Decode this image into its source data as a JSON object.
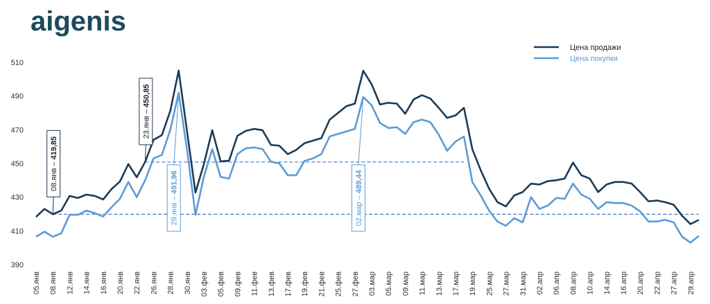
{
  "logo": "aigenis",
  "chart_data": {
    "type": "line",
    "categories": [
      "05.янв",
      null,
      "08.янв",
      null,
      "12.янв",
      null,
      "14.янв",
      null,
      "16.янв",
      null,
      "20.янв",
      null,
      "22.янв",
      null,
      "26.янв",
      null,
      "28.янв",
      null,
      "30.янв",
      null,
      "03.фев",
      null,
      "05.фев",
      null,
      "09.фев",
      null,
      "11.фев",
      null,
      "13.фев",
      null,
      "17.фев",
      null,
      "19.фев",
      null,
      "21.фев",
      null,
      "25.фев",
      null,
      "27.фев",
      null,
      "03.мар",
      null,
      "05.мар",
      null,
      "09.мар",
      null,
      "11.мар",
      null,
      "13.мар",
      null,
      "17.мар",
      null,
      "19.мар",
      null,
      "25.мар",
      null,
      "27.мар",
      null,
      "31.мар",
      null,
      "02.апр",
      null,
      "06.апр",
      null,
      "08.апр",
      null,
      "10.апр",
      null,
      "14.апр",
      null,
      "16.апр",
      null,
      "20.апр",
      null,
      "22.апр",
      null,
      "27.апр",
      null,
      "29.апр",
      null
    ],
    "series": [
      {
        "name": "Цена продажи",
        "color": "#1b3a57",
        "values": [
          418.3,
          423,
          419.85,
          422,
          430.7,
          429.5,
          431.5,
          430.7,
          428.6,
          434.8,
          439.3,
          449.6,
          441.8,
          450.85,
          464,
          466.8,
          481.2,
          505.1,
          468.9,
          432.7,
          449.6,
          469.7,
          451.2,
          451.6,
          466.4,
          469.3,
          470.5,
          469.7,
          461,
          460.5,
          455.5,
          458,
          462,
          463.5,
          465,
          476,
          480,
          484,
          485.5,
          505,
          497,
          485,
          486,
          485.5,
          479.5,
          488,
          490.5,
          488.5,
          483,
          477,
          478.5,
          483,
          458.5,
          446,
          435,
          427,
          424.5,
          431,
          433,
          438,
          437.5,
          439.5,
          440,
          441,
          450.5,
          443,
          441,
          433,
          437.5,
          439,
          439,
          438,
          433,
          427.5,
          428,
          427,
          425.5,
          419,
          414,
          416.5
        ]
      },
      {
        "name": "Цена покупки",
        "color": "#5b9bd5",
        "values": [
          406.5,
          409.5,
          406.5,
          408.5,
          419.5,
          419.5,
          422,
          420.5,
          418.5,
          424,
          429,
          439,
          430,
          440,
          453,
          455,
          470,
          491.96,
          458,
          419.5,
          442,
          458.5,
          442,
          441,
          455.5,
          459,
          459.5,
          458.5,
          451,
          450,
          443,
          443,
          451.5,
          453,
          455.5,
          466,
          467.5,
          469,
          470.5,
          489.44,
          484.5,
          474,
          471,
          471.5,
          467.5,
          474.5,
          476,
          474.5,
          467,
          457.5,
          463,
          466,
          439,
          431,
          422,
          415.5,
          413,
          417.5,
          415,
          430,
          423,
          425,
          429.5,
          429,
          438,
          431.5,
          429,
          423,
          427,
          426.5,
          426.5,
          425,
          421.5,
          415.5,
          415.5,
          416.5,
          415,
          406.5,
          403,
          407
        ]
      }
    ],
    "ylim": [
      390,
      510
    ],
    "yticks": [
      390,
      410,
      430,
      450,
      470,
      490,
      510
    ],
    "grid": false,
    "legend": "top-right",
    "annotations": [
      {
        "label": "08.янв –",
        "value": 419.85,
        "value_label": "419,85",
        "series": 0
      },
      {
        "label": "23.янв –",
        "value": 450.85,
        "value_label": "450,85",
        "series": 0
      },
      {
        "label": "29.янв –",
        "value": 491.96,
        "value_label": "491,96",
        "series": 1
      },
      {
        "label": "02.мар –",
        "value": 489.44,
        "value_label": "489,44",
        "series": 1
      }
    ]
  }
}
